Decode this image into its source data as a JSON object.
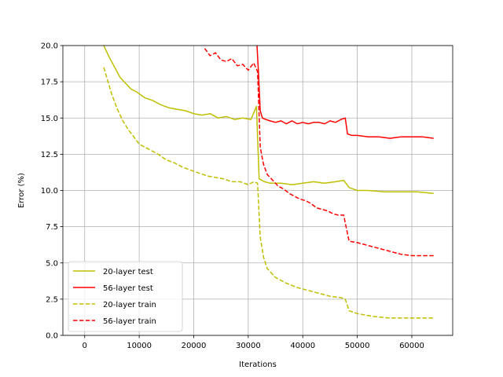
{
  "chart_data": {
    "type": "line",
    "xlabel": "Iterations",
    "ylabel": "Error (%)",
    "xlim": [
      -4000,
      67500
    ],
    "ylim": [
      0,
      20
    ],
    "xticks": [
      0,
      10000,
      20000,
      30000,
      40000,
      50000,
      60000
    ],
    "xtick_labels": [
      "0",
      "10000",
      "20000",
      "30000",
      "40000",
      "50000",
      "60000"
    ],
    "yticks": [
      0,
      2.5,
      5,
      7.5,
      10,
      12.5,
      15,
      17.5,
      20
    ],
    "ytick_labels": [
      "0.0",
      "2.5",
      "5.0",
      "7.5",
      "10.0",
      "12.5",
      "15.0",
      "17.5",
      "20.0"
    ],
    "grid": true,
    "legend_position": "lower-left",
    "series": [
      {
        "name": "20-layer test",
        "color": "#bfbf00",
        "style": "solid",
        "x": [
          3500,
          4500,
          5500,
          6500,
          7500,
          8500,
          9500,
          11000,
          12500,
          14000,
          15500,
          17000,
          18500,
          20000,
          21500,
          23000,
          24500,
          26000,
          27500,
          29000,
          30500,
          31500,
          32000,
          33000,
          34000,
          35000,
          36000,
          38000,
          40000,
          42000,
          44000,
          46000,
          47500,
          48500,
          50000,
          52000,
          55000,
          58000,
          61000,
          64000
        ],
        "y": [
          20,
          19.2,
          18.5,
          17.8,
          17.4,
          17.0,
          16.8,
          16.4,
          16.2,
          15.9,
          15.7,
          15.6,
          15.5,
          15.3,
          15.2,
          15.3,
          15.0,
          15.1,
          14.9,
          15.0,
          14.9,
          15.8,
          10.8,
          10.6,
          10.5,
          10.5,
          10.5,
          10.4,
          10.5,
          10.6,
          10.5,
          10.6,
          10.7,
          10.2,
          10.0,
          10.0,
          9.9,
          9.9,
          9.9,
          9.8
        ]
      },
      {
        "name": "56-layer test",
        "color": "#ff0000",
        "style": "solid",
        "x": [
          31600,
          31900,
          32200,
          32600,
          33200,
          34000,
          35000,
          36000,
          37000,
          38000,
          39000,
          40000,
          41000,
          42000,
          43000,
          44000,
          45000,
          46000,
          47000,
          47800,
          48200,
          49000,
          50000,
          52000,
          54000,
          56000,
          58000,
          60000,
          62000,
          64000
        ],
        "y": [
          20,
          18,
          15.5,
          15.0,
          14.9,
          14.8,
          14.7,
          14.8,
          14.6,
          14.8,
          14.6,
          14.7,
          14.6,
          14.7,
          14.7,
          14.6,
          14.8,
          14.7,
          14.9,
          15.0,
          13.9,
          13.8,
          13.8,
          13.7,
          13.7,
          13.6,
          13.7,
          13.7,
          13.7,
          13.6
        ]
      },
      {
        "name": "20-layer train",
        "color": "#bfbf00",
        "style": "dashed",
        "x": [
          3500,
          4200,
          5000,
          6000,
          7000,
          8000,
          9000,
          10000,
          11000,
          12000,
          13500,
          15000,
          16500,
          18000,
          19500,
          21000,
          22500,
          24000,
          25500,
          27000,
          28500,
          30000,
          31000,
          31700,
          32200,
          32800,
          33500,
          35000,
          37000,
          39000,
          41000,
          43000,
          45000,
          47000,
          47800,
          48500,
          50000,
          53000,
          56000,
          60000,
          64000
        ],
        "y": [
          18.5,
          17.6,
          16.6,
          15.6,
          14.8,
          14.2,
          13.7,
          13.2,
          13.0,
          12.8,
          12.5,
          12.1,
          11.9,
          11.6,
          11.4,
          11.2,
          11.0,
          10.9,
          10.8,
          10.6,
          10.6,
          10.4,
          10.6,
          10.5,
          6.8,
          5.4,
          4.6,
          4.0,
          3.6,
          3.3,
          3.1,
          2.9,
          2.7,
          2.6,
          2.5,
          1.7,
          1.5,
          1.3,
          1.2,
          1.2,
          1.2
        ]
      },
      {
        "name": "56-layer train",
        "color": "#ff0000",
        "style": "dashed",
        "x": [
          22000,
          23000,
          24000,
          25000,
          26000,
          27000,
          28000,
          29000,
          30000,
          31000,
          31700,
          32200,
          32800,
          33500,
          34500,
          35500,
          36500,
          37500,
          38500,
          39500,
          40500,
          41500,
          42500,
          43500,
          44500,
          45500,
          46500,
          47500,
          48000,
          48500,
          50000,
          52000,
          54000,
          56000,
          58000,
          60000,
          62000,
          64000
        ],
        "y": [
          19.8,
          19.3,
          19.5,
          19.0,
          18.9,
          19.1,
          18.6,
          18.7,
          18.3,
          18.8,
          18.2,
          13.0,
          11.8,
          11.1,
          10.7,
          10.3,
          10.1,
          9.8,
          9.6,
          9.4,
          9.3,
          9.1,
          8.8,
          8.7,
          8.6,
          8.4,
          8.3,
          8.3,
          7.4,
          6.5,
          6.4,
          6.2,
          6.0,
          5.8,
          5.6,
          5.5,
          5.5,
          5.5
        ]
      }
    ]
  }
}
